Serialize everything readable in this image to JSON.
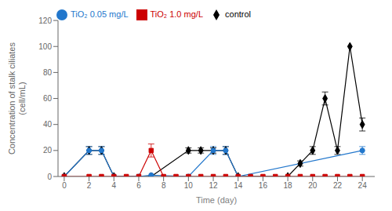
{
  "chart_data": {
    "type": "line",
    "xlabel": "Time (day)",
    "ylabel": "Concentration of stalk ciliates\n(cell/mL)",
    "xlim": [
      -0.5,
      25
    ],
    "ylim": [
      0,
      120
    ],
    "xticks": [
      0,
      2,
      4,
      6,
      8,
      10,
      12,
      14,
      16,
      18,
      20,
      22,
      24
    ],
    "yticks": [
      0,
      20,
      40,
      60,
      80,
      100,
      120
    ],
    "grid": false,
    "legend": "upper left",
    "series": [
      {
        "name": "control",
        "color": "#000000",
        "marker": "diamond",
        "x": [
          0,
          2,
          3,
          4,
          7,
          10,
          11,
          12,
          13,
          14,
          18,
          19,
          20,
          21,
          22,
          23,
          24
        ],
        "values": [
          0,
          20,
          20,
          0,
          0,
          20,
          20,
          20,
          20,
          0,
          0,
          10,
          20,
          60,
          20,
          100,
          40
        ],
        "yerr": [
          0,
          3,
          3,
          0,
          0,
          2,
          2,
          2,
          3,
          0,
          0,
          2,
          3,
          5,
          3,
          0,
          5
        ]
      },
      {
        "name": "TiO₂ 0.05 mg/L",
        "color": "#2277cc",
        "marker": "circle",
        "x": [
          0,
          2,
          3,
          4,
          6,
          7,
          10,
          12,
          13,
          14,
          24
        ],
        "values": [
          0,
          20,
          20,
          0,
          0,
          1,
          0,
          20,
          20,
          0,
          20
        ],
        "yerr": [
          0,
          3,
          3,
          0,
          0,
          0,
          0,
          3,
          3,
          0,
          3
        ]
      },
      {
        "name": "TiO₂ 1.0 mg/L",
        "color": "#cc0000",
        "marker": "square",
        "x": [
          0,
          2,
          3,
          4,
          5,
          6,
          7,
          8,
          9,
          10,
          11,
          12,
          13,
          14,
          15,
          16,
          17,
          18,
          19,
          20,
          21,
          22,
          23,
          24
        ],
        "values": [
          0,
          0,
          0,
          0,
          0,
          0,
          20,
          0,
          0,
          0,
          0,
          0,
          0,
          0,
          0,
          0,
          0,
          0,
          0,
          0,
          0,
          0,
          0,
          0
        ],
        "yerr": [
          0,
          0,
          0,
          0,
          0,
          0,
          5,
          0,
          0,
          0,
          0,
          0,
          0,
          0,
          0,
          0,
          0,
          0,
          0,
          0,
          0,
          0,
          0,
          0
        ]
      }
    ]
  }
}
